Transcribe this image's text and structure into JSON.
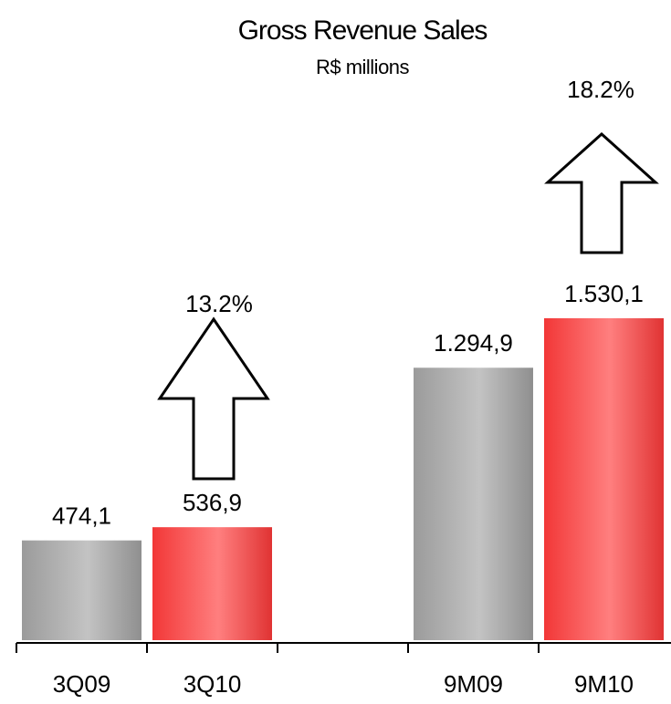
{
  "chart_data": {
    "type": "bar",
    "title": "Gross Revenue Sales",
    "subtitle": "R$ millions",
    "categories": [
      "3Q09",
      "3Q10",
      null,
      "9M09",
      "9M10"
    ],
    "values": [
      474.1,
      536.9,
      null,
      1294.9,
      1530.1
    ],
    "value_labels": [
      "474,1",
      "536,9",
      null,
      "1.294,9",
      "1.530,1"
    ],
    "colors": [
      "#a3a3a3",
      "#ff3a3a",
      null,
      "#a3a3a3",
      "#ff3a3a"
    ],
    "annotations": [
      {
        "text": "13.2%"
      },
      {
        "text": "18.2%"
      }
    ]
  }
}
